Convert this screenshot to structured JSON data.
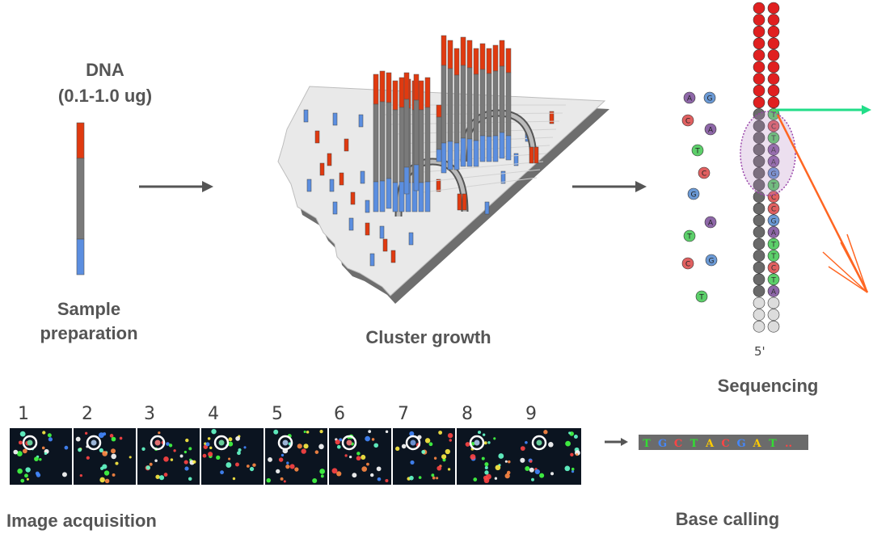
{
  "dna": {
    "title": "DNA",
    "amount": "(0.1-1.0 ug)"
  },
  "labels": {
    "sample_prep_line1": "Sample",
    "sample_prep_line2": "preparation",
    "cluster_growth": "Cluster growth",
    "sequencing": "Sequencing",
    "image_acquisition": "Image acquisition",
    "base_calling": "Base calling",
    "five_prime": "5'"
  },
  "frames": [
    "1",
    "2",
    "3",
    "4",
    "5",
    "6",
    "7",
    "8",
    "9"
  ],
  "frame_ring_colors": [
    "#66cc99",
    "#9bb4d6",
    "#e07070",
    "#66cc99",
    "#9bb4d6",
    "#e07070",
    "#6a8fcf",
    "#9bb4d6",
    "#66cc99"
  ],
  "base_call": {
    "bases": [
      "T",
      "G",
      "C",
      "T",
      "A",
      "C",
      "G",
      "A",
      "T",
      ".."
    ],
    "base_colors": {
      "T": "#33dd33",
      "G": "#4488ff",
      "C": "#ff4444",
      "A": "#ffcc00",
      "..": "#ff4444"
    }
  },
  "nucleotides": {
    "colors": {
      "A": "#8e67a8",
      "G": "#6b9ad6",
      "C": "#e06060",
      "T": "#5ccf6a"
    },
    "free": [
      "A",
      "G",
      "C",
      "A",
      "T",
      "C",
      "G",
      "A",
      "T",
      "C",
      "G",
      "T"
    ],
    "strand_template": [
      "T",
      "C",
      "T",
      "A",
      "A",
      "G",
      "T",
      "C",
      "C",
      "G",
      "A",
      "T"
    ],
    "strand_new": [
      "",
      "",
      "",
      "",
      "",
      "",
      "",
      "",
      "",
      "",
      "",
      ""
    ]
  },
  "colors": {
    "red": "#e03a10",
    "blue": "#5b8ee0",
    "grey": "#7a7a7a",
    "arrow": "#555555",
    "green_laser": "#22dd88",
    "orange_laser": "#ff6622",
    "purple_ellipse": "#9944aa"
  }
}
